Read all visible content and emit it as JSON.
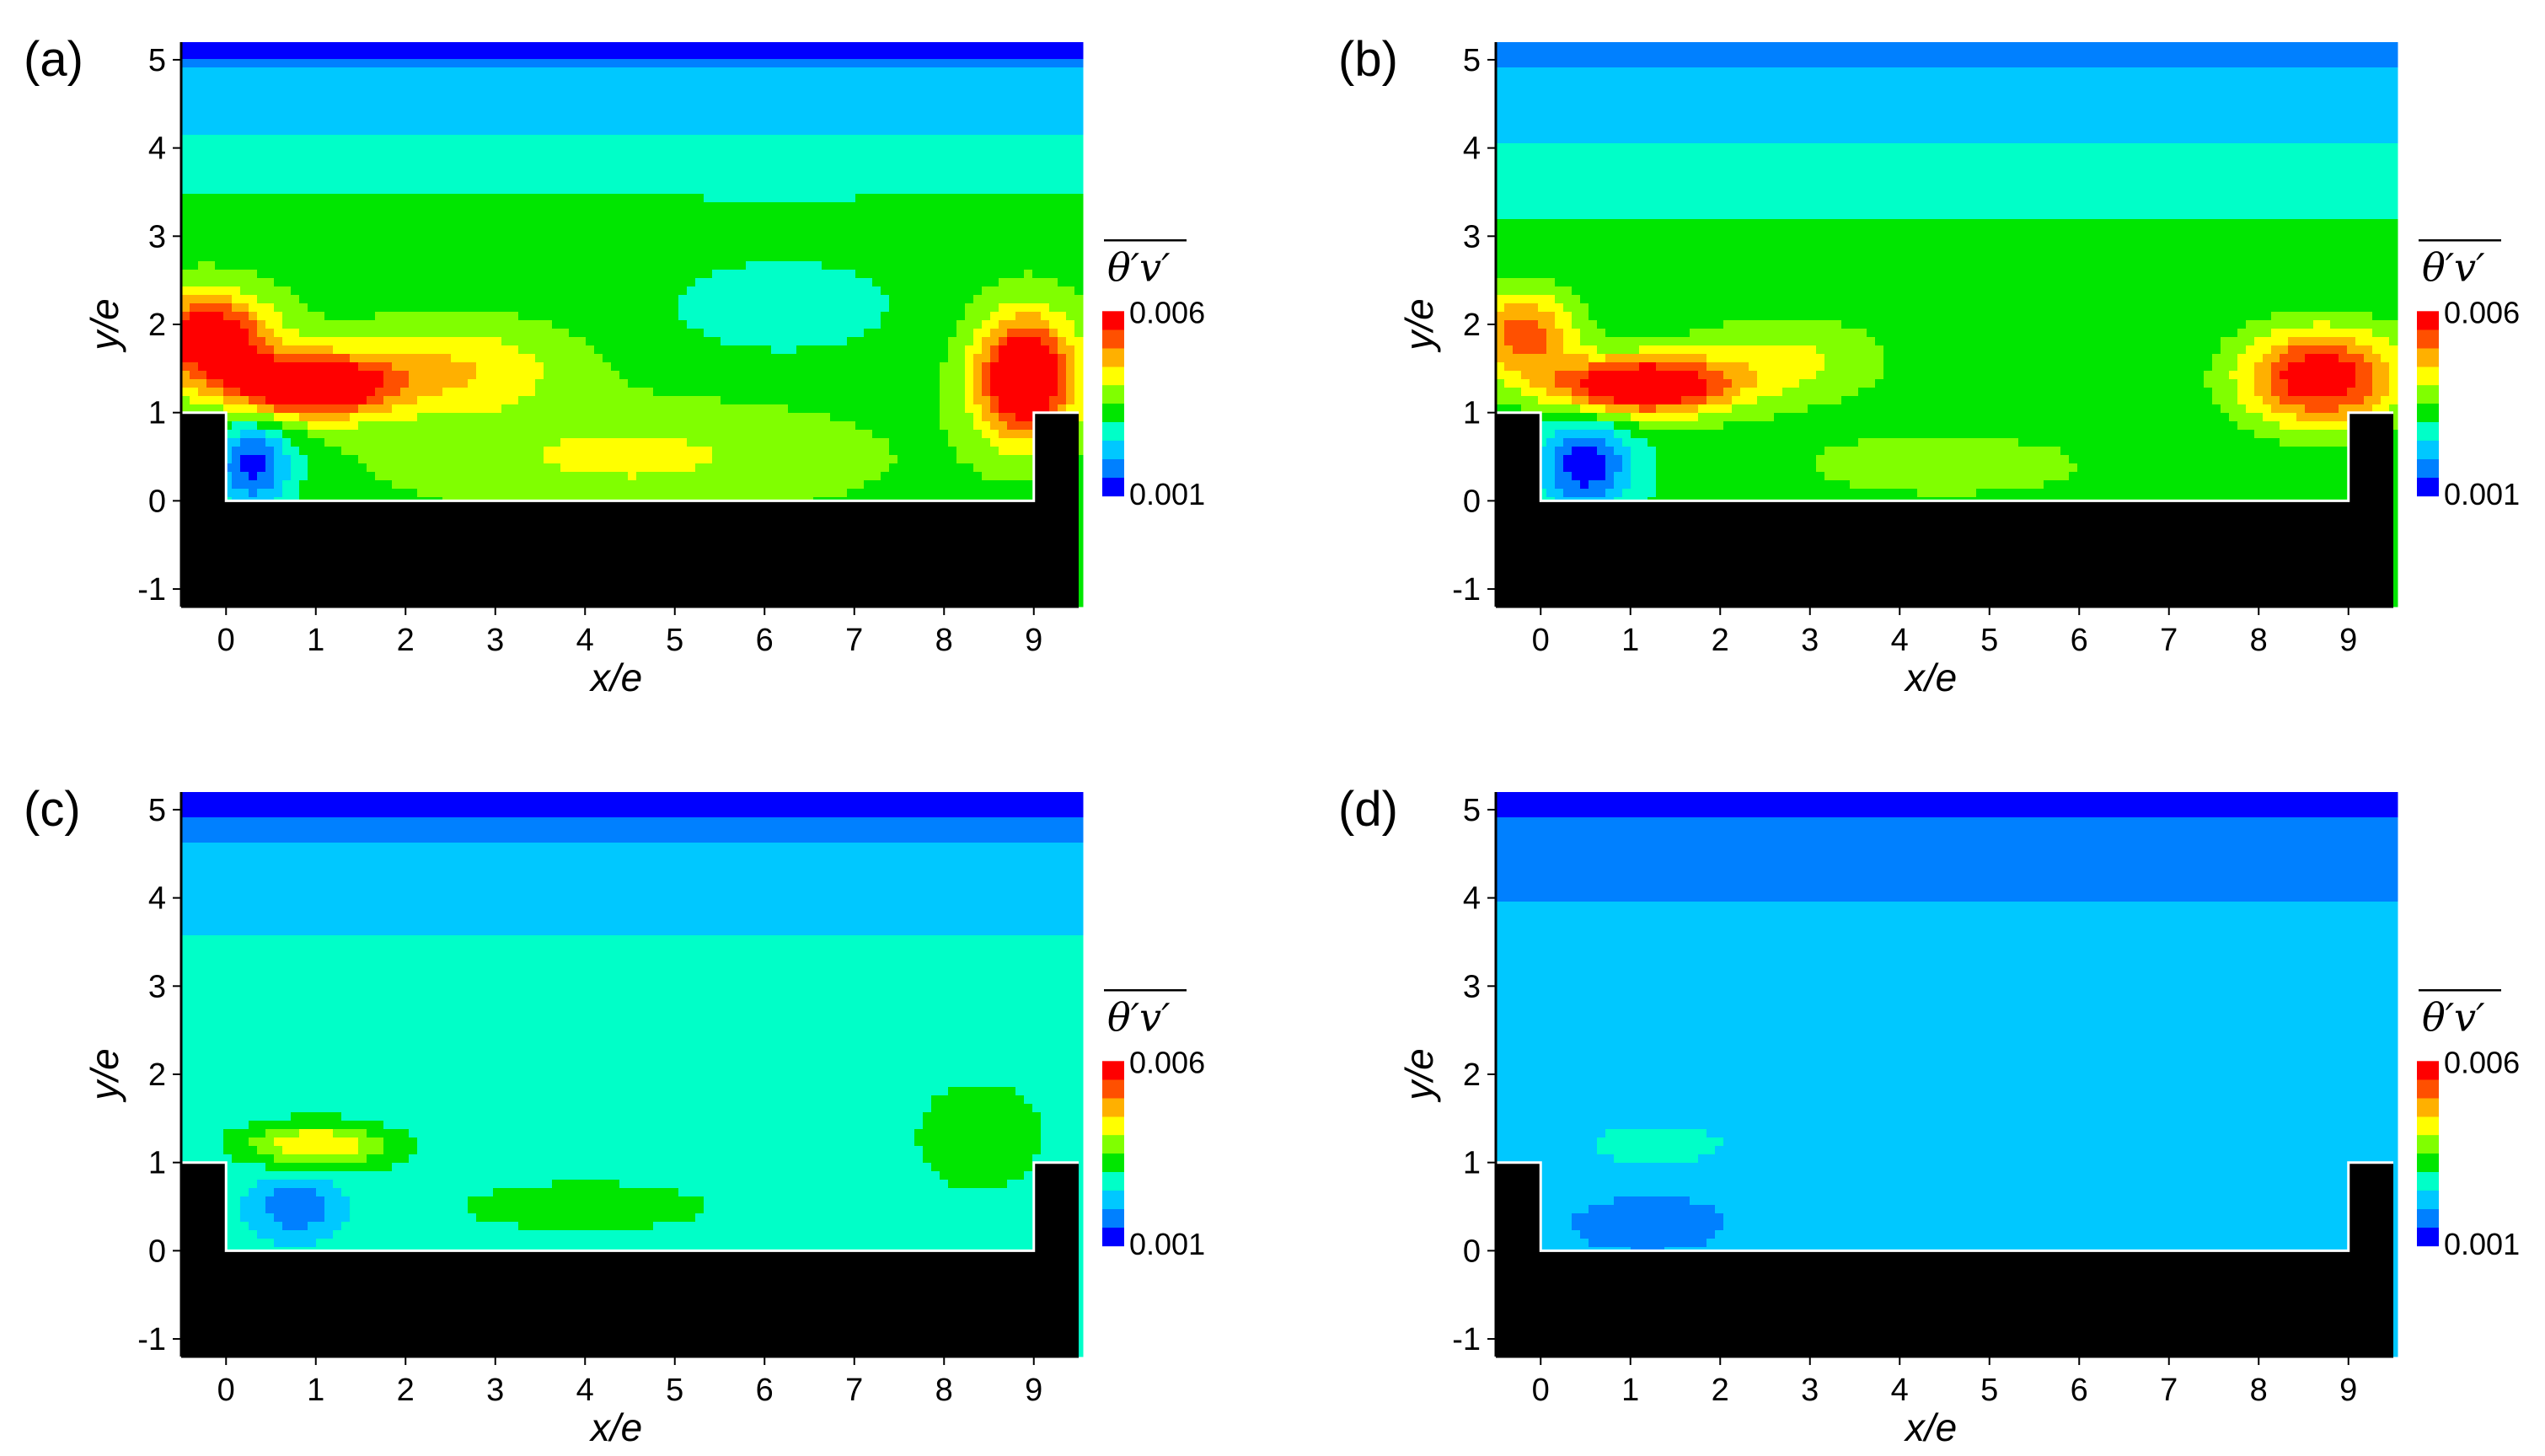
{
  "colormap": [
    "#0000ff",
    "#0080ff",
    "#00c8ff",
    "#00ffc8",
    "#00e600",
    "#80ff00",
    "#ffff00",
    "#ffb000",
    "#ff5000",
    "#ff0000"
  ],
  "chart_data": [
    {
      "type": "heatmap",
      "panel_label": "(a)",
      "xlabel": "x/e",
      "ylabel": "y/e",
      "xlim": [
        -0.5,
        9.5
      ],
      "ylim": [
        -1.2,
        5.2
      ],
      "xticks": [
        "0",
        "1",
        "2",
        "3",
        "4",
        "5",
        "6",
        "7",
        "8",
        "9"
      ],
      "yticks": [
        "-1",
        "0",
        "1",
        "2",
        "3",
        "4",
        "5"
      ],
      "colorbar": {
        "title": "θ′v′",
        "min_label": "0.001",
        "max_label": "0.006",
        "min": 0.001,
        "max": 0.006
      },
      "geometry": {
        "rib_height": 1,
        "cavity_bottom": 0,
        "rib_left_end": 0,
        "rib_right_start": 9
      },
      "field": {
        "base": 0.0033,
        "top_value": 0.0018,
        "top_decay_start": 3.0,
        "blobs": [
          {
            "x": 0.9,
            "y": 1.3,
            "sx": 0.9,
            "sy": 0.35,
            "a": 0.0035
          },
          {
            "x": -0.2,
            "y": 1.85,
            "sx": 0.7,
            "sy": 0.5,
            "a": 0.003
          },
          {
            "x": 8.9,
            "y": 1.4,
            "sx": 0.55,
            "sy": 0.7,
            "a": 0.0035
          },
          {
            "x": 2.5,
            "y": 1.5,
            "sx": 1.3,
            "sy": 0.5,
            "a": 0.0012
          },
          {
            "x": 4.5,
            "y": 0.5,
            "sx": 2.5,
            "sy": 0.6,
            "a": 0.0008
          },
          {
            "x": 0.3,
            "y": 0.4,
            "sx": 0.45,
            "sy": 0.5,
            "a": -0.002
          },
          {
            "x": 6.2,
            "y": 2.2,
            "sx": 1.4,
            "sy": 0.6,
            "a": -0.0006
          }
        ]
      }
    },
    {
      "type": "heatmap",
      "panel_label": "(b)",
      "xlabel": "x/e",
      "ylabel": "y/e",
      "xlim": [
        -0.5,
        9.5
      ],
      "ylim": [
        -1.2,
        5.2
      ],
      "xticks": [
        "0",
        "1",
        "2",
        "3",
        "4",
        "5",
        "6",
        "7",
        "8",
        "9"
      ],
      "yticks": [
        "-1",
        "0",
        "1",
        "2",
        "3",
        "4",
        "5"
      ],
      "colorbar": {
        "title": "θ′v′",
        "min_label": "0.001",
        "max_label": "0.006",
        "min": 0.001,
        "max": 0.006
      },
      "geometry": {
        "rib_height": 1,
        "cavity_bottom": 0,
        "rib_left_end": 0,
        "rib_right_start": 9
      },
      "field": {
        "base": 0.0031,
        "top_value": 0.0019,
        "top_decay_start": 3.0,
        "blobs": [
          {
            "x": 1.1,
            "y": 1.3,
            "sx": 1.0,
            "sy": 0.33,
            "a": 0.0035
          },
          {
            "x": -0.2,
            "y": 1.9,
            "sx": 0.6,
            "sy": 0.5,
            "a": 0.0022
          },
          {
            "x": 8.7,
            "y": 1.4,
            "sx": 0.9,
            "sy": 0.55,
            "a": 0.003
          },
          {
            "x": 2.7,
            "y": 1.6,
            "sx": 1.2,
            "sy": 0.5,
            "a": 0.001
          },
          {
            "x": 4.5,
            "y": 0.4,
            "sx": 2.3,
            "sy": 0.5,
            "a": 0.0006
          },
          {
            "x": 0.5,
            "y": 0.4,
            "sx": 0.5,
            "sy": 0.5,
            "a": -0.002
          }
        ]
      }
    },
    {
      "type": "heatmap",
      "panel_label": "(c)",
      "xlabel": "x/e",
      "ylabel": "y/e",
      "xlim": [
        -0.5,
        9.5
      ],
      "ylim": [
        -1.2,
        5.2
      ],
      "xticks": [
        "0",
        "1",
        "2",
        "3",
        "4",
        "5",
        "6",
        "7",
        "8",
        "9"
      ],
      "yticks": [
        "-1",
        "0",
        "1",
        "2",
        "3",
        "4",
        "5"
      ],
      "colorbar": {
        "title": "θ′v′",
        "min_label": "0.001",
        "max_label": "0.006",
        "min": 0.001,
        "max": 0.006
      },
      "geometry": {
        "rib_height": 1,
        "cavity_bottom": 0,
        "rib_left_end": 0,
        "rib_right_start": 9
      },
      "field": {
        "base": 0.0027,
        "top_value": 0.0017,
        "top_decay_start": 3.2,
        "blobs": [
          {
            "x": 1.0,
            "y": 1.2,
            "sx": 0.8,
            "sy": 0.25,
            "a": 0.0018
          },
          {
            "x": 8.4,
            "y": 1.3,
            "sx": 0.7,
            "sy": 0.6,
            "a": 0.0008
          },
          {
            "x": 0.8,
            "y": 0.5,
            "sx": 0.5,
            "sy": 0.35,
            "a": -0.0012
          },
          {
            "x": 4.0,
            "y": 0.5,
            "sx": 2.5,
            "sy": 0.5,
            "a": 0.0004
          }
        ]
      }
    },
    {
      "type": "heatmap",
      "panel_label": "(d)",
      "xlabel": "x/e",
      "ylabel": "y/e",
      "xlim": [
        -0.5,
        9.5
      ],
      "ylim": [
        -1.2,
        5.2
      ],
      "xticks": [
        "0",
        "1",
        "2",
        "3",
        "4",
        "5",
        "6",
        "7",
        "8",
        "9"
      ],
      "yticks": [
        "-1",
        "0",
        "1",
        "2",
        "3",
        "4",
        "5"
      ],
      "colorbar": {
        "title": "θ′v′",
        "min_label": "0.001",
        "max_label": "0.006",
        "min": 0.001,
        "max": 0.006
      },
      "geometry": {
        "rib_height": 1,
        "cavity_bottom": 0,
        "rib_left_end": 0,
        "rib_right_start": 9
      },
      "field": {
        "base": 0.0022,
        "top_value": 0.0016,
        "top_decay_start": 3.3,
        "blobs": [
          {
            "x": 1.3,
            "y": 1.2,
            "sx": 1.0,
            "sy": 0.3,
            "a": 0.0005
          },
          {
            "x": 8.4,
            "y": 1.2,
            "sx": 0.9,
            "sy": 0.35,
            "a": 0.0003
          },
          {
            "x": 1.2,
            "y": 0.3,
            "sx": 0.8,
            "sy": 0.3,
            "a": -0.0006
          }
        ]
      }
    }
  ]
}
